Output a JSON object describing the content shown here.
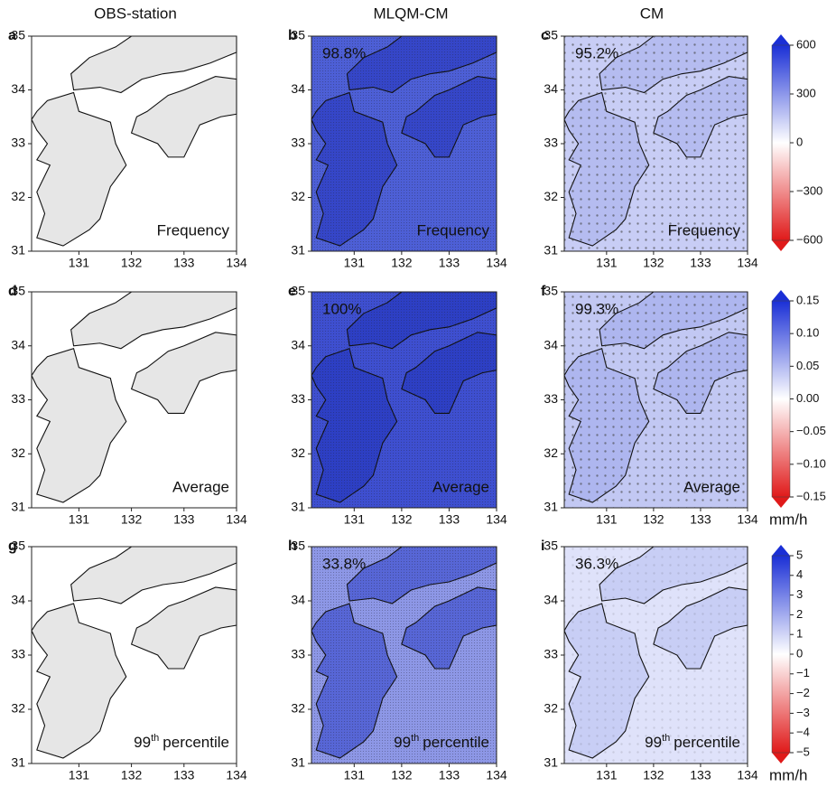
{
  "column_titles": [
    "OBS-station",
    "MLQM-CM",
    "CM"
  ],
  "axes": {
    "lat_ticks": [
      "31",
      "32",
      "33",
      "34",
      "35"
    ],
    "lon_ticks": [
      "131",
      "132",
      "133",
      "134"
    ]
  },
  "rows": [
    {
      "label": "Frequency",
      "panels": [
        {
          "letter": "a"
        },
        {
          "letter": "b",
          "percent": "98.8%"
        },
        {
          "letter": "c",
          "percent": "95.2%"
        }
      ],
      "colorbar": {
        "ticks": [
          "600",
          "300",
          "0",
          "−300",
          "−600"
        ]
      }
    },
    {
      "label": "Average",
      "panels": [
        {
          "letter": "d"
        },
        {
          "letter": "e",
          "percent": "100%"
        },
        {
          "letter": "f",
          "percent": "99.3%"
        }
      ],
      "colorbar": {
        "ticks": [
          "0.15",
          "0.10",
          "0.05",
          "0.00",
          "−0.05",
          "−0.10",
          "−0.15"
        ],
        "unit": "mm/h"
      }
    },
    {
      "label": {
        "number": "99",
        "sup": "th",
        "rest": "percentile"
      },
      "panels": [
        {
          "letter": "g"
        },
        {
          "letter": "h",
          "percent": "33.8%"
        },
        {
          "letter": "i",
          "percent": "36.3%"
        }
      ],
      "colorbar": {
        "ticks": [
          "5",
          "4",
          "3",
          "2",
          "1",
          "0",
          "−1",
          "−2",
          "−3",
          "−4",
          "−5"
        ],
        "unit": "mm/h"
      }
    }
  ]
}
